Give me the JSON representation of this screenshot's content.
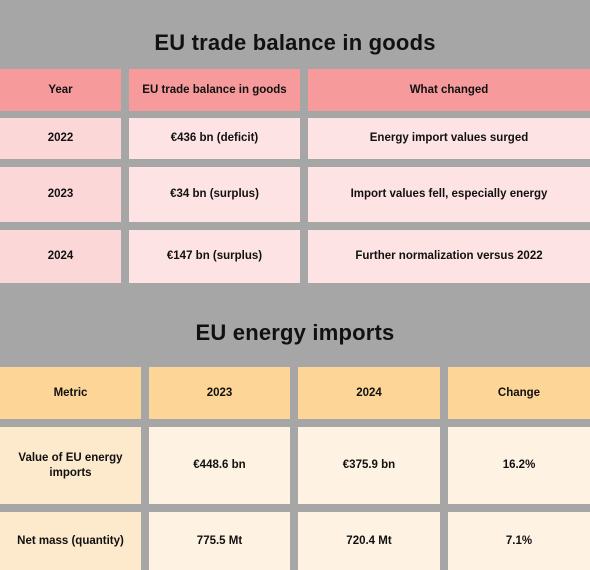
{
  "trade": {
    "title": "EU trade balance in goods",
    "headers": [
      "Year",
      "EU trade balance in goods",
      "What changed"
    ],
    "rows": [
      [
        "2022",
        "€436 bn (deficit)",
        "Energy import values surged"
      ],
      [
        "2023",
        "€34 bn (surplus)",
        "Import values fell, especially energy"
      ],
      [
        "2024",
        "€147 bn (surplus)",
        "Further normalization versus 2022"
      ]
    ]
  },
  "energy": {
    "title": "EU energy imports",
    "headers": [
      "Metric",
      "2023",
      "2024",
      "Change"
    ],
    "rows": [
      [
        "Value of EU energy imports",
        "€448.6 bn",
        "€375.9 bn",
        "16.2%"
      ],
      [
        "Net mass (quantity)",
        "775.5 Mt",
        "720.4 Mt",
        "7.1%"
      ]
    ]
  },
  "colors": {
    "background": "#a6a6a6",
    "trade_header": "#f69a9b",
    "trade_row": "#fcd7d8",
    "energy_header": "#fcd597",
    "energy_row": "#fde9cb"
  }
}
